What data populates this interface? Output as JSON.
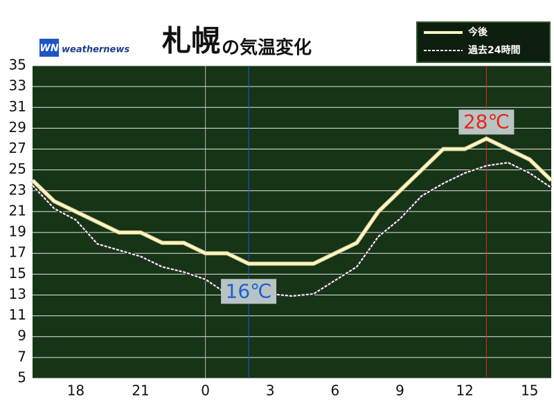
{
  "chart_data": {
    "type": "line",
    "title": "札幌",
    "title_suffix": "の気温変化",
    "logo": {
      "mark": "WN",
      "text": "weathernews"
    },
    "x": [
      16,
      17,
      18,
      19,
      20,
      21,
      22,
      23,
      24,
      25,
      26,
      27,
      28,
      29,
      30,
      31,
      32,
      33,
      34,
      35,
      36,
      37,
      38,
      39,
      40
    ],
    "series": [
      {
        "name": "今後",
        "color": "#fff6c4",
        "style": "solid",
        "values": [
          24,
          22,
          21,
          20,
          19,
          19,
          18,
          18,
          17,
          17,
          16,
          16,
          16,
          16,
          17,
          18,
          21,
          23,
          25,
          27,
          27,
          28,
          27,
          26,
          24
        ]
      },
      {
        "name": "過去24時間",
        "color": "#ffffff",
        "style": "dashed",
        "values": [
          23.5,
          21.3,
          20.2,
          17.9,
          17.3,
          16.7,
          15.7,
          15.2,
          14.5,
          13.1,
          13.2,
          13.1,
          12.9,
          13.1,
          14.4,
          15.7,
          18.6,
          20.3,
          22.5,
          23.7,
          24.7,
          25.4,
          25.7,
          24.7,
          23.3
        ]
      }
    ],
    "xlim": [
      16,
      40
    ],
    "xticks": [
      18,
      21,
      {
        "value": 24,
        "label": "0",
        "grid": true
      },
      {
        "value": 27,
        "label": "3"
      },
      {
        "value": 30,
        "label": "6"
      },
      {
        "value": 33,
        "label": "9"
      },
      {
        "value": 36,
        "label": "12"
      },
      {
        "value": 39,
        "label": "15"
      }
    ],
    "ylim": [
      5,
      35
    ],
    "yticks": [
      5,
      7,
      9,
      11,
      13,
      15,
      17,
      19,
      21,
      23,
      25,
      27,
      29,
      31,
      33,
      35
    ],
    "grid": true,
    "legend": "top-right",
    "annotations": [
      {
        "x": 26,
        "y": 16,
        "text": "16℃",
        "color": "#1a5fd6"
      },
      {
        "x": 37,
        "y": 28,
        "text": "28℃",
        "color": "#e8241c"
      }
    ]
  }
}
